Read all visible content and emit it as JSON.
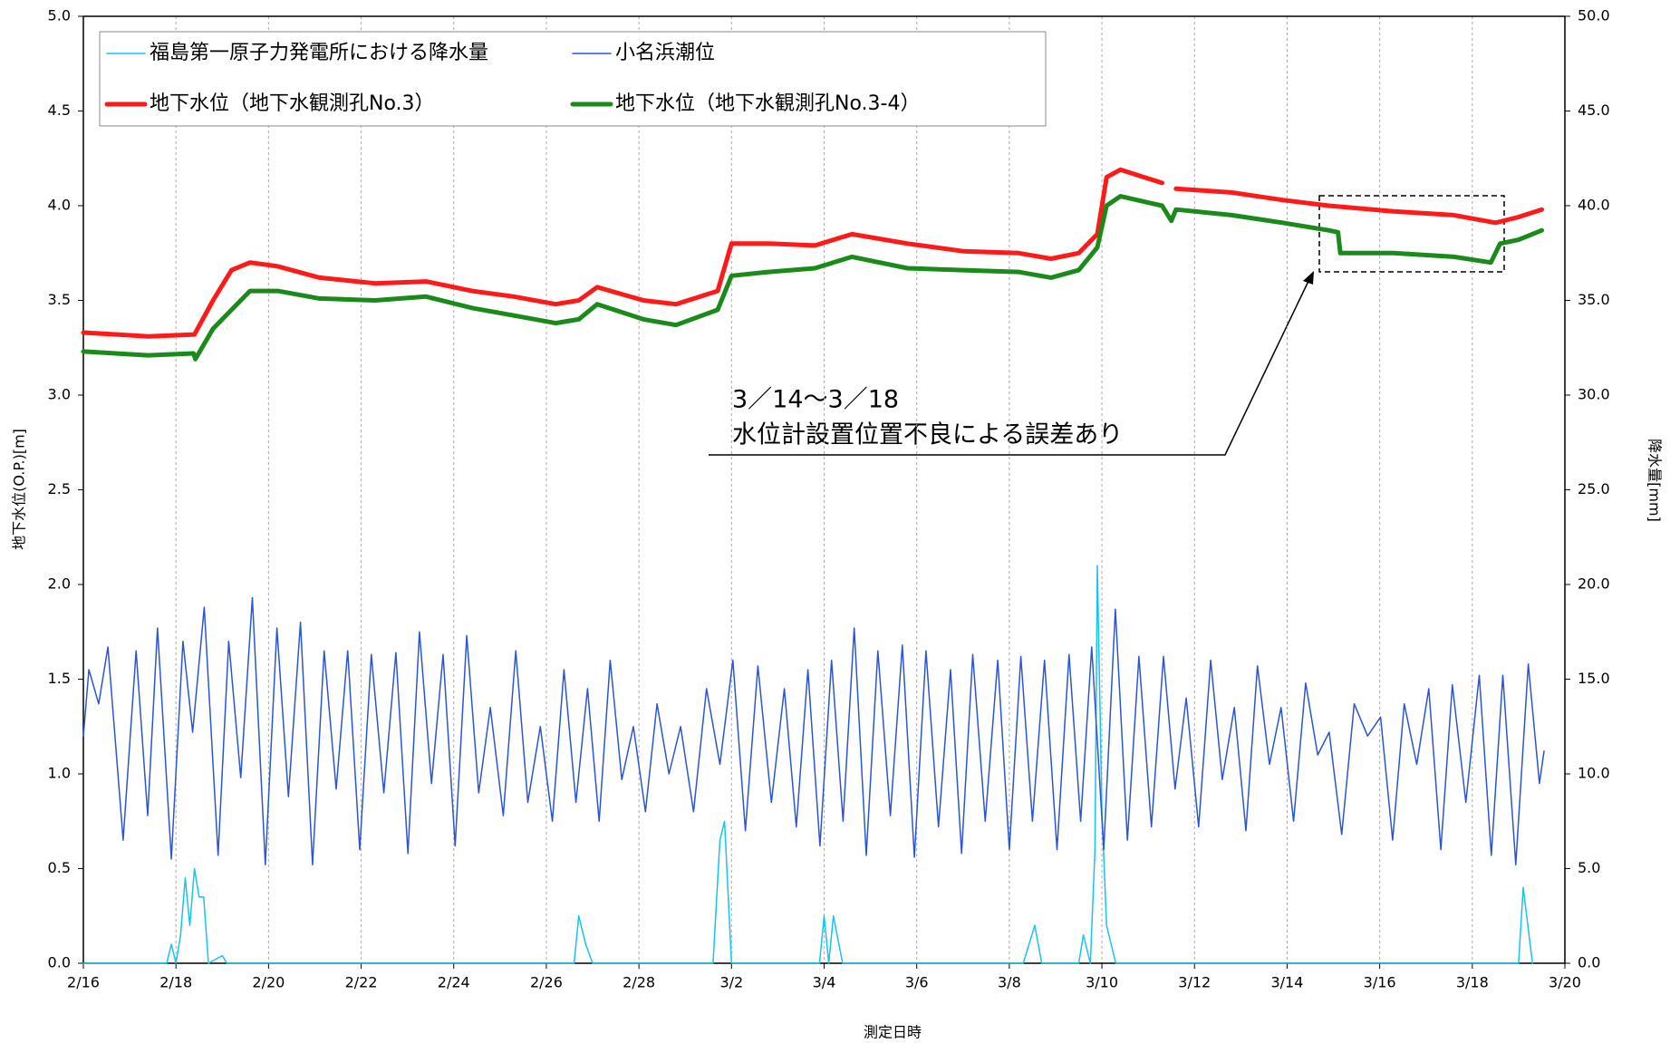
{
  "chart_data": {
    "type": "line",
    "xlabel": "測定日時",
    "ylabel": "地下水位(O.P.)[m]",
    "y2label": "降水量[mm]",
    "xlim": [
      0,
      32
    ],
    "xticks": [
      {
        "value": 0,
        "label": "2/16"
      },
      {
        "value": 2,
        "label": "2/18"
      },
      {
        "value": 4,
        "label": "2/20"
      },
      {
        "value": 6,
        "label": "2/22"
      },
      {
        "value": 8,
        "label": "2/24"
      },
      {
        "value": 10,
        "label": "2/26"
      },
      {
        "value": 12,
        "label": "2/28"
      },
      {
        "value": 14,
        "label": "3/2"
      },
      {
        "value": 16,
        "label": "3/4"
      },
      {
        "value": 18,
        "label": "3/6"
      },
      {
        "value": 20,
        "label": "3/8"
      },
      {
        "value": 22,
        "label": "3/10"
      },
      {
        "value": 24,
        "label": "3/12"
      },
      {
        "value": 26,
        "label": "3/14"
      },
      {
        "value": 28,
        "label": "3/16"
      },
      {
        "value": 30,
        "label": "3/18"
      },
      {
        "value": 32,
        "label": "3/20"
      }
    ],
    "ylim": [
      0,
      5
    ],
    "yticks": [
      {
        "value": 0,
        "label": "0.0"
      },
      {
        "value": 0.5,
        "label": "0.5"
      },
      {
        "value": 1,
        "label": "1.0"
      },
      {
        "value": 1.5,
        "label": "1.5"
      },
      {
        "value": 2,
        "label": "2.0"
      },
      {
        "value": 2.5,
        "label": "2.5"
      },
      {
        "value": 3,
        "label": "3.0"
      },
      {
        "value": 3.5,
        "label": "3.5"
      },
      {
        "value": 4,
        "label": "4.0"
      },
      {
        "value": 4.5,
        "label": "4.5"
      },
      {
        "value": 5,
        "label": "5.0"
      }
    ],
    "y2lim": [
      0,
      50
    ],
    "y2ticks": [
      {
        "value": 0,
        "label": "0.0"
      },
      {
        "value": 5,
        "label": "5.0"
      },
      {
        "value": 10,
        "label": "10.0"
      },
      {
        "value": 15,
        "label": "15.0"
      },
      {
        "value": 20,
        "label": "20.0"
      },
      {
        "value": 25,
        "label": "25.0"
      },
      {
        "value": 30,
        "label": "30.0"
      },
      {
        "value": 35,
        "label": "35.0"
      },
      {
        "value": 40,
        "label": "40.0"
      },
      {
        "value": 45,
        "label": "45.0"
      },
      {
        "value": 50,
        "label": "50.0"
      }
    ],
    "grid": true,
    "series": [
      {
        "name": "福島第一原子力発電所における降水量",
        "color": "#17c3ef",
        "axis": "y2",
        "width": 1.5,
        "x": [
          0,
          1.8,
          1.9,
          2.0,
          2.1,
          2.2,
          2.3,
          2.4,
          2.5,
          2.6,
          2.7,
          3.0,
          3.1,
          10.6,
          10.7,
          10.85,
          11.0,
          13.6,
          13.75,
          13.85,
          14.0,
          15.9,
          16.0,
          16.1,
          16.2,
          16.4,
          20.3,
          20.55,
          20.7,
          21.5,
          21.6,
          21.75,
          21.85,
          21.9,
          22.0,
          22.1,
          22.3,
          31.0,
          31.1,
          31.3
        ],
        "values": [
          0,
          0,
          1,
          0,
          1.5,
          4.5,
          2,
          5,
          3.5,
          3.5,
          0,
          0.4,
          0,
          0,
          2.5,
          1,
          0,
          0,
          6.5,
          7.5,
          0,
          0,
          2.5,
          0,
          2.5,
          0,
          0,
          2,
          0,
          0,
          1.5,
          0,
          6,
          21,
          8,
          2,
          0,
          0,
          4,
          0
        ]
      },
      {
        "name": "小名浜潮位",
        "color": "#2a55d8",
        "axis": "y",
        "width": 1.5,
        "x": [
          0,
          0.12,
          0.33,
          0.53,
          0.86,
          1.14,
          1.39,
          1.6,
          1.9,
          2.15,
          2.36,
          2.61,
          2.91,
          3.14,
          3.4,
          3.65,
          3.93,
          4.18,
          4.43,
          4.69,
          4.95,
          5.2,
          5.46,
          5.71,
          5.97,
          6.22,
          6.49,
          6.75,
          7.01,
          7.26,
          7.52,
          7.77,
          8.03,
          8.28,
          8.54,
          8.79,
          9.07,
          9.34,
          9.6,
          9.87,
          10.13,
          10.38,
          10.64,
          10.89,
          11.14,
          11.38,
          11.63,
          11.88,
          12.14,
          12.39,
          12.65,
          12.9,
          13.18,
          13.46,
          13.75,
          14.03,
          14.3,
          14.57,
          14.86,
          15.14,
          15.4,
          15.65,
          15.91,
          16.16,
          16.41,
          16.65,
          16.91,
          17.16,
          17.43,
          17.69,
          17.95,
          18.2,
          18.47,
          18.73,
          18.97,
          19.21,
          19.48,
          19.75,
          20.0,
          20.25,
          20.5,
          20.76,
          21.03,
          21.29,
          21.54,
          21.78,
          22.04,
          22.29,
          22.55,
          22.8,
          23.07,
          23.33,
          23.58,
          23.82,
          24.09,
          24.35,
          24.6,
          24.86,
          25.11,
          25.36,
          25.62,
          25.87,
          26.14,
          26.4,
          26.66,
          26.91,
          27.18,
          27.45,
          27.74,
          28.02,
          28.28,
          28.53,
          28.8,
          29.06,
          29.32,
          29.57,
          29.86,
          30.15,
          30.41,
          30.66,
          30.94,
          31.21,
          31.45,
          31.55
        ],
        "values": [
          1.2,
          1.55,
          1.37,
          1.67,
          0.65,
          1.65,
          0.78,
          1.77,
          0.55,
          1.7,
          1.22,
          1.88,
          0.57,
          1.7,
          0.98,
          1.93,
          0.52,
          1.77,
          0.88,
          1.8,
          0.52,
          1.65,
          0.92,
          1.65,
          0.6,
          1.63,
          0.9,
          1.64,
          0.58,
          1.75,
          0.95,
          1.63,
          0.62,
          1.73,
          0.9,
          1.35,
          0.78,
          1.65,
          0.85,
          1.25,
          0.75,
          1.55,
          0.85,
          1.45,
          0.75,
          1.6,
          0.97,
          1.25,
          0.8,
          1.37,
          1.0,
          1.25,
          0.8,
          1.45,
          1.05,
          1.6,
          0.7,
          1.57,
          0.85,
          1.45,
          0.72,
          1.55,
          0.62,
          1.6,
          0.75,
          1.77,
          0.57,
          1.65,
          0.78,
          1.68,
          0.56,
          1.65,
          0.72,
          1.55,
          0.58,
          1.63,
          0.75,
          1.6,
          0.6,
          1.62,
          0.75,
          1.6,
          0.6,
          1.63,
          0.75,
          1.67,
          0.6,
          1.87,
          0.65,
          1.62,
          0.72,
          1.62,
          0.92,
          1.4,
          0.72,
          1.6,
          0.97,
          1.35,
          0.7,
          1.57,
          1.05,
          1.35,
          0.75,
          1.48,
          1.1,
          1.22,
          0.68,
          1.37,
          1.2,
          1.3,
          0.65,
          1.37,
          1.05,
          1.45,
          0.6,
          1.47,
          0.85,
          1.52,
          0.57,
          1.52,
          0.52,
          1.58,
          0.95,
          1.12
        ]
      },
      {
        "name": "地下水位（地下水観測孔No.3）",
        "color": "#ff1a1a",
        "axis": "y",
        "width": 5,
        "x": [
          0,
          1.4,
          2.4,
          2.8,
          3.2,
          3.6,
          4.2,
          5.1,
          6.3,
          7.4,
          8.4,
          9.3,
          10.2,
          10.7,
          11.1,
          12.1,
          12.8,
          13.7,
          14.0,
          14.8,
          15.8,
          16.6,
          17.8,
          19.0,
          20.2,
          20.9,
          21.5,
          21.9,
          22.1,
          22.4,
          23.3,
          23.45,
          23.6,
          24.8,
          25.9,
          26.9,
          28.3,
          29.6,
          30.5,
          31.0,
          31.5
        ],
        "values": [
          3.33,
          3.31,
          3.32,
          3.5,
          3.66,
          3.7,
          3.68,
          3.62,
          3.59,
          3.6,
          3.55,
          3.52,
          3.48,
          3.5,
          3.57,
          3.5,
          3.48,
          3.55,
          3.8,
          3.8,
          3.79,
          3.85,
          3.8,
          3.76,
          3.75,
          3.72,
          3.75,
          3.85,
          4.15,
          4.19,
          4.12,
          null,
          4.09,
          4.07,
          4.03,
          4.0,
          3.97,
          3.95,
          3.91,
          3.94,
          3.98
        ]
      },
      {
        "name": "地下水位（地下水観測孔No.3-4）",
        "color": "#1a8a1a",
        "axis": "y",
        "width": 5,
        "x": [
          0,
          1.4,
          2.38,
          2.42,
          2.8,
          3.6,
          4.2,
          5.1,
          6.3,
          7.4,
          8.4,
          9.3,
          10.2,
          10.7,
          11.1,
          12.1,
          12.8,
          13.7,
          14.0,
          14.8,
          15.8,
          16.6,
          17.8,
          19.0,
          20.2,
          20.9,
          21.5,
          21.9,
          22.1,
          22.4,
          23.3,
          23.5,
          23.6,
          24.8,
          25.9,
          26.9,
          27.1,
          27.15,
          28.3,
          29.6,
          30.4,
          30.6,
          31.0,
          31.5
        ],
        "values": [
          3.23,
          3.21,
          3.22,
          3.19,
          3.35,
          3.55,
          3.55,
          3.51,
          3.5,
          3.52,
          3.46,
          3.42,
          3.38,
          3.4,
          3.48,
          3.4,
          3.37,
          3.45,
          3.63,
          3.65,
          3.67,
          3.73,
          3.67,
          3.66,
          3.65,
          3.62,
          3.66,
          3.78,
          4.0,
          4.05,
          4.0,
          3.92,
          3.98,
          3.95,
          3.91,
          3.87,
          3.86,
          3.75,
          3.75,
          3.73,
          3.7,
          3.8,
          3.82,
          3.87
        ]
      }
    ],
    "annotations": [
      "3／14～3／18",
      "水位計設置位置不良による誤差あり"
    ]
  }
}
